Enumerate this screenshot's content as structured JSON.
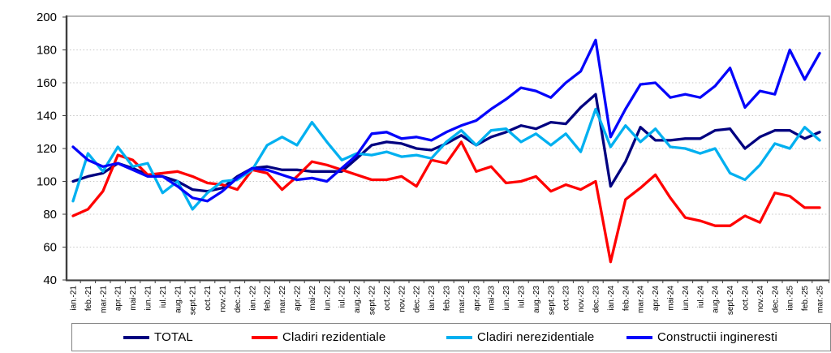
{
  "chart_data": {
    "type": "line",
    "title": "",
    "xlabel": "",
    "ylabel": "",
    "ylim": [
      40,
      200
    ],
    "y_tick_step": 20,
    "grid": "horizontal-dotted",
    "legend_position": "bottom",
    "x_labels": [
      "ian.-21",
      "feb.-21",
      "mar.-21",
      "apr.-21",
      "mai-21",
      "iun.-21",
      "iul.-21",
      "aug.-21",
      "sept.-21",
      "oct.-21",
      "nov.-21",
      "dec.-21",
      "ian.-22",
      "feb.-22",
      "mar.-22",
      "apr.-22",
      "mai-22",
      "iun.-22",
      "iul.-22",
      "aug.-22",
      "sept.-22",
      "oct.-22",
      "nov.-22",
      "dec.-22",
      "ian.-23",
      "feb.-23",
      "mar.-23",
      "apr.-23",
      "mai-23",
      "iun.-23",
      "iul.-23",
      "aug.-23",
      "sept.-23",
      "oct.-23",
      "nov.-23",
      "dec.-23",
      "ian.-24",
      "feb.-24",
      "mar.-24",
      "apr.-24",
      "mai-24",
      "iun.-24",
      "iul.-24",
      "aug.-24",
      "sept.-24",
      "oct.-24",
      "nov.-24",
      "dec.-24",
      "ian.-25",
      "feb.-25",
      "mar.-25"
    ],
    "series": [
      {
        "name": "TOTAL",
        "color": "#000080",
        "values": [
          100,
          103,
          105,
          111,
          108,
          104,
          103,
          100,
          95,
          94,
          96,
          103,
          108,
          109,
          107,
          107,
          106,
          106,
          106,
          114,
          122,
          124,
          123,
          120,
          119,
          123,
          128,
          122,
          127,
          130,
          134,
          132,
          136,
          135,
          145,
          153,
          97,
          112,
          133,
          125,
          125,
          126,
          126,
          131,
          132,
          120,
          127,
          131,
          131,
          126,
          130
        ]
      },
      {
        "name": "Cladiri rezidentiale",
        "color": "#FF0000",
        "values": [
          79,
          83,
          94,
          116,
          113,
          104,
          105,
          106,
          103,
          99,
          98,
          95,
          107,
          105,
          95,
          103,
          112,
          110,
          107,
          104,
          101,
          101,
          103,
          97,
          113,
          111,
          124,
          106,
          109,
          99,
          100,
          103,
          94,
          98,
          95,
          100,
          51,
          89,
          96,
          104,
          90,
          78,
          76,
          73,
          73,
          79,
          75,
          93,
          91,
          84,
          84
        ]
      },
      {
        "name": "Cladiri nerezidentiale",
        "color": "#00B0F0",
        "values": [
          88,
          117,
          106,
          121,
          109,
          111,
          93,
          100,
          83,
          93,
          100,
          101,
          107,
          122,
          127,
          122,
          136,
          124,
          113,
          117,
          116,
          118,
          115,
          116,
          114,
          124,
          131,
          122,
          131,
          132,
          124,
          129,
          122,
          129,
          118,
          144,
          121,
          134,
          124,
          132,
          121,
          120,
          117,
          120,
          105,
          101,
          110,
          123,
          120,
          133,
          125
        ]
      },
      {
        "name": "Constructii ingineresti",
        "color": "#0505FA",
        "values": [
          121,
          113,
          109,
          111,
          107,
          103,
          103,
          97,
          90,
          88,
          94,
          102,
          108,
          107,
          104,
          101,
          102,
          100,
          108,
          116,
          129,
          130,
          126,
          127,
          125,
          130,
          134,
          137,
          144,
          150,
          157,
          155,
          151,
          160,
          167,
          186,
          127,
          144,
          159,
          160,
          151,
          153,
          151,
          158,
          169,
          145,
          155,
          153,
          180,
          162,
          178
        ]
      }
    ],
    "axis_colors": {
      "plot_border": "#9a9a9a",
      "axis_line": "#3f3f3f",
      "gridline": "#c6c6c6",
      "tick_label": "#000000"
    }
  }
}
